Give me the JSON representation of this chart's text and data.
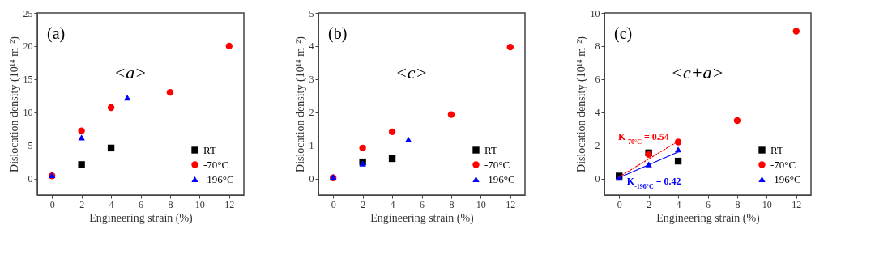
{
  "chart_data": [
    {
      "type": "scatter",
      "xlabel": "Engineering strain (%)",
      "ylabel": "Dislocation density (10¹⁴ m⁻²)",
      "xlim": [
        -1,
        13
      ],
      "xticks": [
        0,
        2,
        4,
        6,
        8,
        10,
        12
      ],
      "ylim": [
        -2.5,
        25
      ],
      "yticks": [
        0,
        5,
        10,
        15,
        20,
        25
      ],
      "legend": "bottom right",
      "annotations": [
        "(a)",
        "<a>"
      ],
      "series": [
        {
          "name": "RT",
          "color": "#000000",
          "marker": "square",
          "x": [
            2,
            4
          ],
          "values": [
            2.1,
            4.6
          ]
        },
        {
          "name": "-70°C",
          "color": "#ff0000",
          "marker": "circle",
          "x": [
            0,
            2,
            4,
            8,
            12
          ],
          "values": [
            0.4,
            7.2,
            10.7,
            13.0,
            20.0
          ]
        },
        {
          "name": "-196°C",
          "color": "#0000ff",
          "marker": "triangle",
          "x": [
            0,
            2,
            5.1
          ],
          "values": [
            0.5,
            6.2,
            12.2
          ]
        }
      ]
    },
    {
      "type": "scatter",
      "xlabel": "Engineering strain (%)",
      "ylabel": "Dislocation density (10¹⁴ m⁻²)",
      "xlim": [
        -1,
        13
      ],
      "xticks": [
        0,
        2,
        4,
        6,
        8,
        10,
        12
      ],
      "ylim": [
        -0.5,
        5
      ],
      "yticks": [
        0,
        1,
        2,
        3,
        4,
        5
      ],
      "legend": "bottom right",
      "annotations": [
        "(b)",
        "<c>"
      ],
      "series": [
        {
          "name": "RT",
          "color": "#000000",
          "marker": "square",
          "x": [
            2,
            4
          ],
          "values": [
            0.5,
            0.6
          ]
        },
        {
          "name": "-70°C",
          "color": "#ff0000",
          "marker": "circle",
          "x": [
            0,
            2,
            4,
            8,
            12
          ],
          "values": [
            0.02,
            0.92,
            1.41,
            1.93,
            3.97
          ]
        },
        {
          "name": "-196°C",
          "color": "#0000ff",
          "marker": "triangle",
          "x": [
            0,
            2,
            5.1
          ],
          "values": [
            0.05,
            0.45,
            1.18
          ]
        }
      ]
    },
    {
      "type": "scatter",
      "xlabel": "Engineering strain (%)",
      "ylabel": "Dislocation density (10¹⁴ m⁻²)",
      "xlim": [
        -1,
        13
      ],
      "xticks": [
        0,
        2,
        4,
        6,
        8,
        10,
        12
      ],
      "ylim": [
        -1,
        10
      ],
      "yticks": [
        0,
        2,
        4,
        6,
        8,
        10
      ],
      "legend": "bottom right",
      "annotations": [
        "(c)",
        "<c+a>",
        "K$_{-70°C}$ = 0.54",
        "K$_{-196°C}$ = 0.42"
      ],
      "series": [
        {
          "name": "RT",
          "color": "#000000",
          "marker": "square",
          "x": [
            0,
            2,
            4
          ],
          "values": [
            0.15,
            1.55,
            1.05
          ]
        },
        {
          "name": "-70°C",
          "color": "#ff0000",
          "marker": "circle",
          "x": [
            2,
            4,
            8,
            12
          ],
          "values": [
            1.45,
            2.2,
            3.5,
            8.9
          ]
        },
        {
          "name": "-196°C",
          "color": "#0000ff",
          "marker": "triangle",
          "x": [
            0,
            2,
            4
          ],
          "values": [
            0.05,
            0.85,
            1.75
          ]
        },
        {
          "type": "line",
          "color": "#ff0000",
          "line_style": "dotted",
          "x": [
            0,
            4
          ],
          "values": [
            0.1,
            2.25
          ]
        },
        {
          "type": "line",
          "color": "#0000ff",
          "line_style": "solid",
          "x": [
            0,
            4
          ],
          "values": [
            0.05,
            1.6
          ]
        }
      ]
    }
  ]
}
